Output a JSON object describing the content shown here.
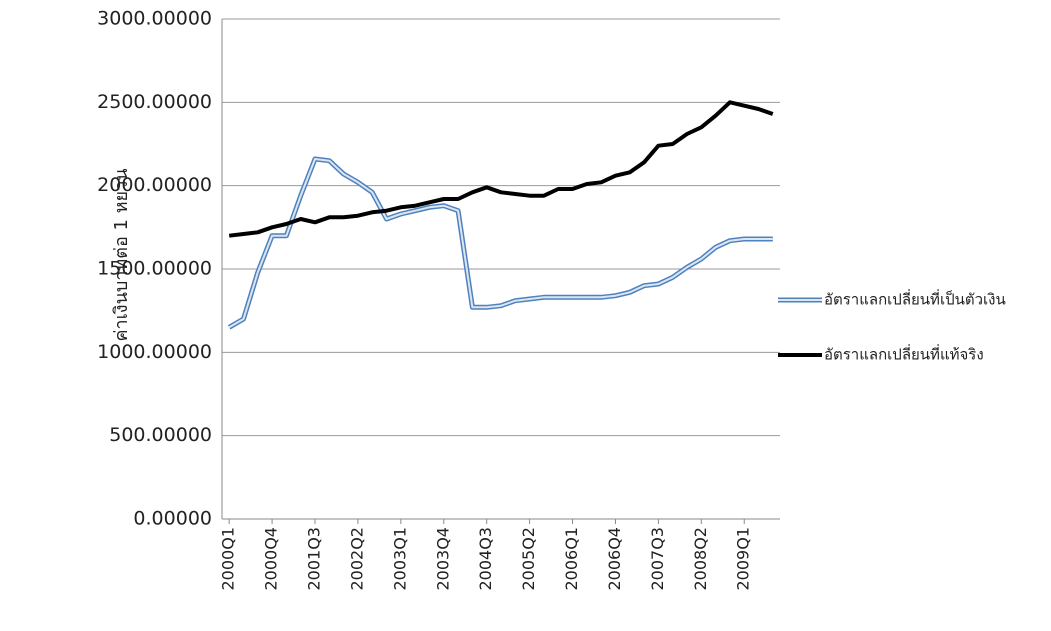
{
  "chart_data": {
    "type": "line",
    "y_label": "ค่าเงินบาทต่อ 1 หยวน",
    "categories": [
      "2000Q1",
      null,
      null,
      "2000Q4",
      null,
      null,
      "2001Q3",
      null,
      null,
      "2002Q2",
      null,
      null,
      "2003Q1",
      null,
      null,
      "2003Q4",
      null,
      null,
      "2004Q3",
      null,
      null,
      "2005Q2",
      null,
      null,
      "2006Q1",
      null,
      null,
      "2006Q4",
      null,
      null,
      "2007Q3",
      null,
      null,
      "2008Q2",
      null,
      null,
      "2009Q1",
      null,
      null
    ],
    "series": [
      {
        "name": "อัตราแลกเปลี่ยนที่เป็นตัวเงิน",
        "color": "#4f81bd",
        "style": "double",
        "values": [
          1150,
          1200,
          1480,
          1700,
          1700,
          1940,
          2160,
          2150,
          2070,
          2020,
          1960,
          1800,
          1830,
          1850,
          1870,
          1880,
          1850,
          1270,
          1270,
          1280,
          1310,
          1320,
          1330,
          1330,
          1330,
          1330,
          1330,
          1340,
          1360,
          1400,
          1410,
          1450,
          1510,
          1560,
          1630,
          1670,
          1680,
          1680,
          1680
        ]
      },
      {
        "name": "อัตราแลกเปลี่ยนที่แท้จริง",
        "color": "#000000",
        "style": "solid",
        "values": [
          1700,
          1710,
          1720,
          1750,
          1770,
          1800,
          1780,
          1810,
          1810,
          1820,
          1840,
          1850,
          1870,
          1880,
          1900,
          1920,
          1920,
          1960,
          1990,
          1960,
          1950,
          1940,
          1940,
          1980,
          1980,
          2010,
          2020,
          2060,
          2080,
          2140,
          2240,
          2250,
          2310,
          2350,
          2420,
          2500,
          2480,
          2460,
          2430
        ]
      }
    ],
    "ylim": [
      0,
      3000
    ],
    "yticks": [
      {
        "value": 0,
        "label": "0.00000"
      },
      {
        "value": 500,
        "label": "500.00000"
      },
      {
        "value": 1000,
        "label": "1000.00000"
      },
      {
        "value": 1500,
        "label": "1500.00000"
      },
      {
        "value": 2000,
        "label": "2000.00000"
      },
      {
        "value": 2500,
        "label": "2500.00000"
      },
      {
        "value": 3000,
        "label": "3000.00000"
      }
    ],
    "grid": true,
    "legend": "right"
  }
}
